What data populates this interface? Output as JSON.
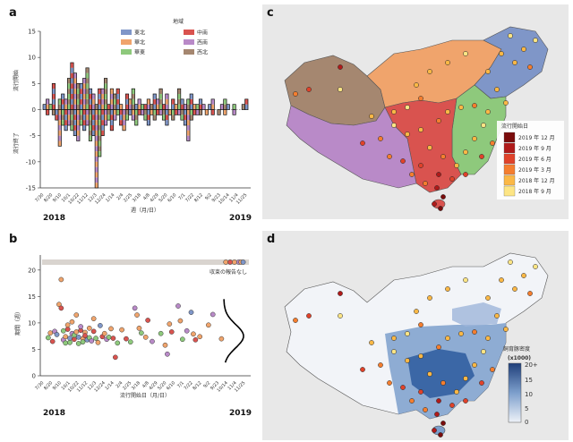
{
  "panels": {
    "a": "a",
    "b": "b",
    "c": "c",
    "d": "d"
  },
  "colors": {
    "northeast": "#7f96c8",
    "north": "#f0a46c",
    "east": "#8ec97c",
    "central": "#d9534f",
    "southwest": "#b98ac8",
    "northwest": "#a58770",
    "map_land": "#e3e3e3",
    "map_sea": "#ffffff"
  },
  "chart_data": [
    {
      "id": "a",
      "type": "bar",
      "title": "",
      "xlabel": "週（月/日）",
      "ylabel_top": "流行開始",
      "ylabel_bottom": "流行終了",
      "ylim": [
        -15,
        15
      ],
      "yticks": [
        15,
        10,
        5,
        0,
        -5,
        -10,
        -15
      ],
      "xticks": [
        "7/30",
        "8/20",
        "9/10",
        "10/1",
        "10/22",
        "11/12",
        "12/3",
        "12/24",
        "1/14",
        "2/4",
        "2/25",
        "3/18",
        "4/8",
        "4/29",
        "5/20",
        "6/10",
        "7/1",
        "7/22",
        "8/12",
        "9/2",
        "9/23",
        "10/14",
        "11/4",
        "11/25"
      ],
      "year_labels": [
        "2018",
        "2019"
      ],
      "legend_title": "地域",
      "legend": [
        "東北",
        "華北",
        "華東",
        "中南",
        "西南",
        "西北"
      ],
      "onset_totals": [
        1,
        2,
        1,
        5,
        0,
        2,
        3,
        2,
        6,
        9,
        7,
        5,
        5,
        6,
        8,
        4,
        3,
        1,
        4,
        4,
        6,
        1,
        4,
        3,
        4,
        1,
        0,
        3,
        2,
        4,
        1,
        2,
        1,
        1,
        2,
        1,
        3,
        2,
        4,
        1,
        3,
        0,
        2,
        1,
        4,
        2,
        1,
        2,
        3,
        1,
        1,
        2,
        1,
        0,
        1,
        2,
        0,
        0,
        1,
        2,
        1,
        0,
        1,
        0,
        0,
        1,
        2
      ],
      "end_totals": [
        0,
        1,
        0,
        1,
        2,
        7,
        3,
        4,
        3,
        4,
        5,
        6,
        3,
        4,
        3,
        6,
        5,
        15,
        9,
        5,
        3,
        2,
        4,
        2,
        1,
        3,
        4,
        2,
        1,
        2,
        3,
        1,
        1,
        2,
        3,
        1,
        2,
        1,
        1,
        2,
        3,
        1,
        2,
        1,
        1,
        2,
        3,
        6,
        2,
        1,
        1,
        1,
        0,
        1,
        0,
        1,
        0,
        1,
        0,
        1,
        0,
        0,
        1,
        0,
        0,
        0,
        0
      ]
    },
    {
      "id": "b",
      "type": "scatter",
      "xlabel": "流行開始日（月/日）",
      "ylabel": "期間（週）",
      "ylim": [
        0,
        22
      ],
      "yticks": [
        0,
        5,
        10,
        15,
        20
      ],
      "xticks": [
        "7/30",
        "8/20",
        "9/10",
        "10/1",
        "10/22",
        "11/12",
        "12/3",
        "12/24",
        "1/14",
        "2/4",
        "2/25",
        "3/18",
        "4/8",
        "4/29",
        "5/20",
        "6/10",
        "7/1",
        "7/22",
        "8/12",
        "9/2",
        "9/23",
        "10/14",
        "11/4",
        "11/25"
      ],
      "year_labels": [
        "2018",
        "2019"
      ],
      "annotation": "収束の報告なし",
      "censored_weeks": 21.5,
      "points": [
        [
          2,
          7.2,
          "east"
        ],
        [
          3,
          8.1,
          "north"
        ],
        [
          4,
          6.5,
          "central"
        ],
        [
          5,
          8.4,
          "southwest"
        ],
        [
          6,
          7.8,
          "northeast"
        ],
        [
          7,
          13.5,
          "north"
        ],
        [
          8,
          18.2,
          "north"
        ],
        [
          8,
          12.8,
          "central"
        ],
        [
          9,
          8.5,
          "east"
        ],
        [
          9,
          6.8,
          "southwest"
        ],
        [
          10,
          7.4,
          "north"
        ],
        [
          10,
          6.2,
          "east"
        ],
        [
          11,
          8.8,
          "central"
        ],
        [
          11,
          9.6,
          "north"
        ],
        [
          12,
          7.1,
          "northeast"
        ],
        [
          12,
          6.3,
          "east"
        ],
        [
          13,
          10.2,
          "north"
        ],
        [
          13,
          8.0,
          "southwest"
        ],
        [
          14,
          6.9,
          "central"
        ],
        [
          14,
          7.7,
          "east"
        ],
        [
          15,
          11.5,
          "north"
        ],
        [
          15,
          8.3,
          "north"
        ],
        [
          16,
          6.1,
          "east"
        ],
        [
          16,
          7.3,
          "northeast"
        ],
        [
          17,
          8.6,
          "central"
        ],
        [
          17,
          9.3,
          "southwest"
        ],
        [
          18,
          7.0,
          "north"
        ],
        [
          18,
          6.4,
          "east"
        ],
        [
          19,
          8.2,
          "north"
        ],
        [
          19,
          7.6,
          "central"
        ],
        [
          20,
          6.8,
          "northeast"
        ],
        [
          21,
          9.0,
          "north"
        ],
        [
          21,
          7.2,
          "east"
        ],
        [
          22,
          6.6,
          "southwest"
        ],
        [
          23,
          8.4,
          "central"
        ],
        [
          23,
          10.8,
          "north"
        ],
        [
          24,
          7.1,
          "east"
        ],
        [
          25,
          6.3,
          "north"
        ],
        [
          26,
          9.5,
          "northeast"
        ],
        [
          27,
          7.4,
          "central"
        ],
        [
          28,
          8.0,
          "north"
        ],
        [
          29,
          6.9,
          "southwest"
        ],
        [
          30,
          7.3,
          "east"
        ],
        [
          31,
          8.9,
          "north"
        ],
        [
          32,
          7.1,
          "central"
        ],
        [
          33,
          3.5,
          "central"
        ],
        [
          34,
          6.2,
          "east"
        ],
        [
          36,
          8.7,
          "north"
        ],
        [
          38,
          7.0,
          "central"
        ],
        [
          40,
          6.4,
          "east"
        ],
        [
          42,
          12.8,
          "southwest"
        ],
        [
          43,
          11.5,
          "north"
        ],
        [
          44,
          9.0,
          "north"
        ],
        [
          45,
          8.1,
          "east"
        ],
        [
          47,
          7.3,
          "north"
        ],
        [
          48,
          10.5,
          "central"
        ],
        [
          50,
          6.5,
          "southwest"
        ],
        [
          54,
          8.0,
          "east"
        ],
        [
          56,
          5.8,
          "north"
        ],
        [
          57,
          4.1,
          "southwest"
        ],
        [
          58,
          9.8,
          "north"
        ],
        [
          59,
          8.3,
          "central"
        ],
        [
          62,
          13.2,
          "southwest"
        ],
        [
          63,
          10.4,
          "north"
        ],
        [
          64,
          6.9,
          "east"
        ],
        [
          66,
          8.5,
          "southwest"
        ],
        [
          68,
          12.0,
          "northeast"
        ],
        [
          69,
          7.9,
          "north"
        ],
        [
          70,
          6.8,
          "central"
        ],
        [
          72,
          7.4,
          "north"
        ],
        [
          76,
          9.6,
          "north"
        ],
        [
          78,
          11.6,
          "southwest"
        ],
        [
          82,
          7.0,
          "north"
        ]
      ],
      "censored_points": [
        [
          84,
          "north"
        ],
        [
          86,
          "central"
        ],
        [
          88,
          "north"
        ],
        [
          90,
          "southwest"
        ],
        [
          91,
          "north"
        ],
        [
          92,
          "northeast"
        ]
      ]
    },
    {
      "id": "c",
      "type": "map",
      "legend_title": "流行開始日",
      "legend": [
        "2019 年 12 月",
        "2019 年 9 月",
        "2019 年 6 月",
        "2019 年 3 月",
        "2018 年 12 月",
        "2018 年 9 月"
      ],
      "legend_colors": [
        "#7a0c0c",
        "#b01a1a",
        "#e0422a",
        "#f57e2f",
        "#fbb846",
        "#fde585"
      ]
    },
    {
      "id": "d",
      "type": "map",
      "legend_title": "飼育豚密度",
      "legend_subtitle": "(x1000)",
      "legend_ticks": [
        "20+",
        "15",
        "10",
        "5",
        "0"
      ]
    }
  ]
}
